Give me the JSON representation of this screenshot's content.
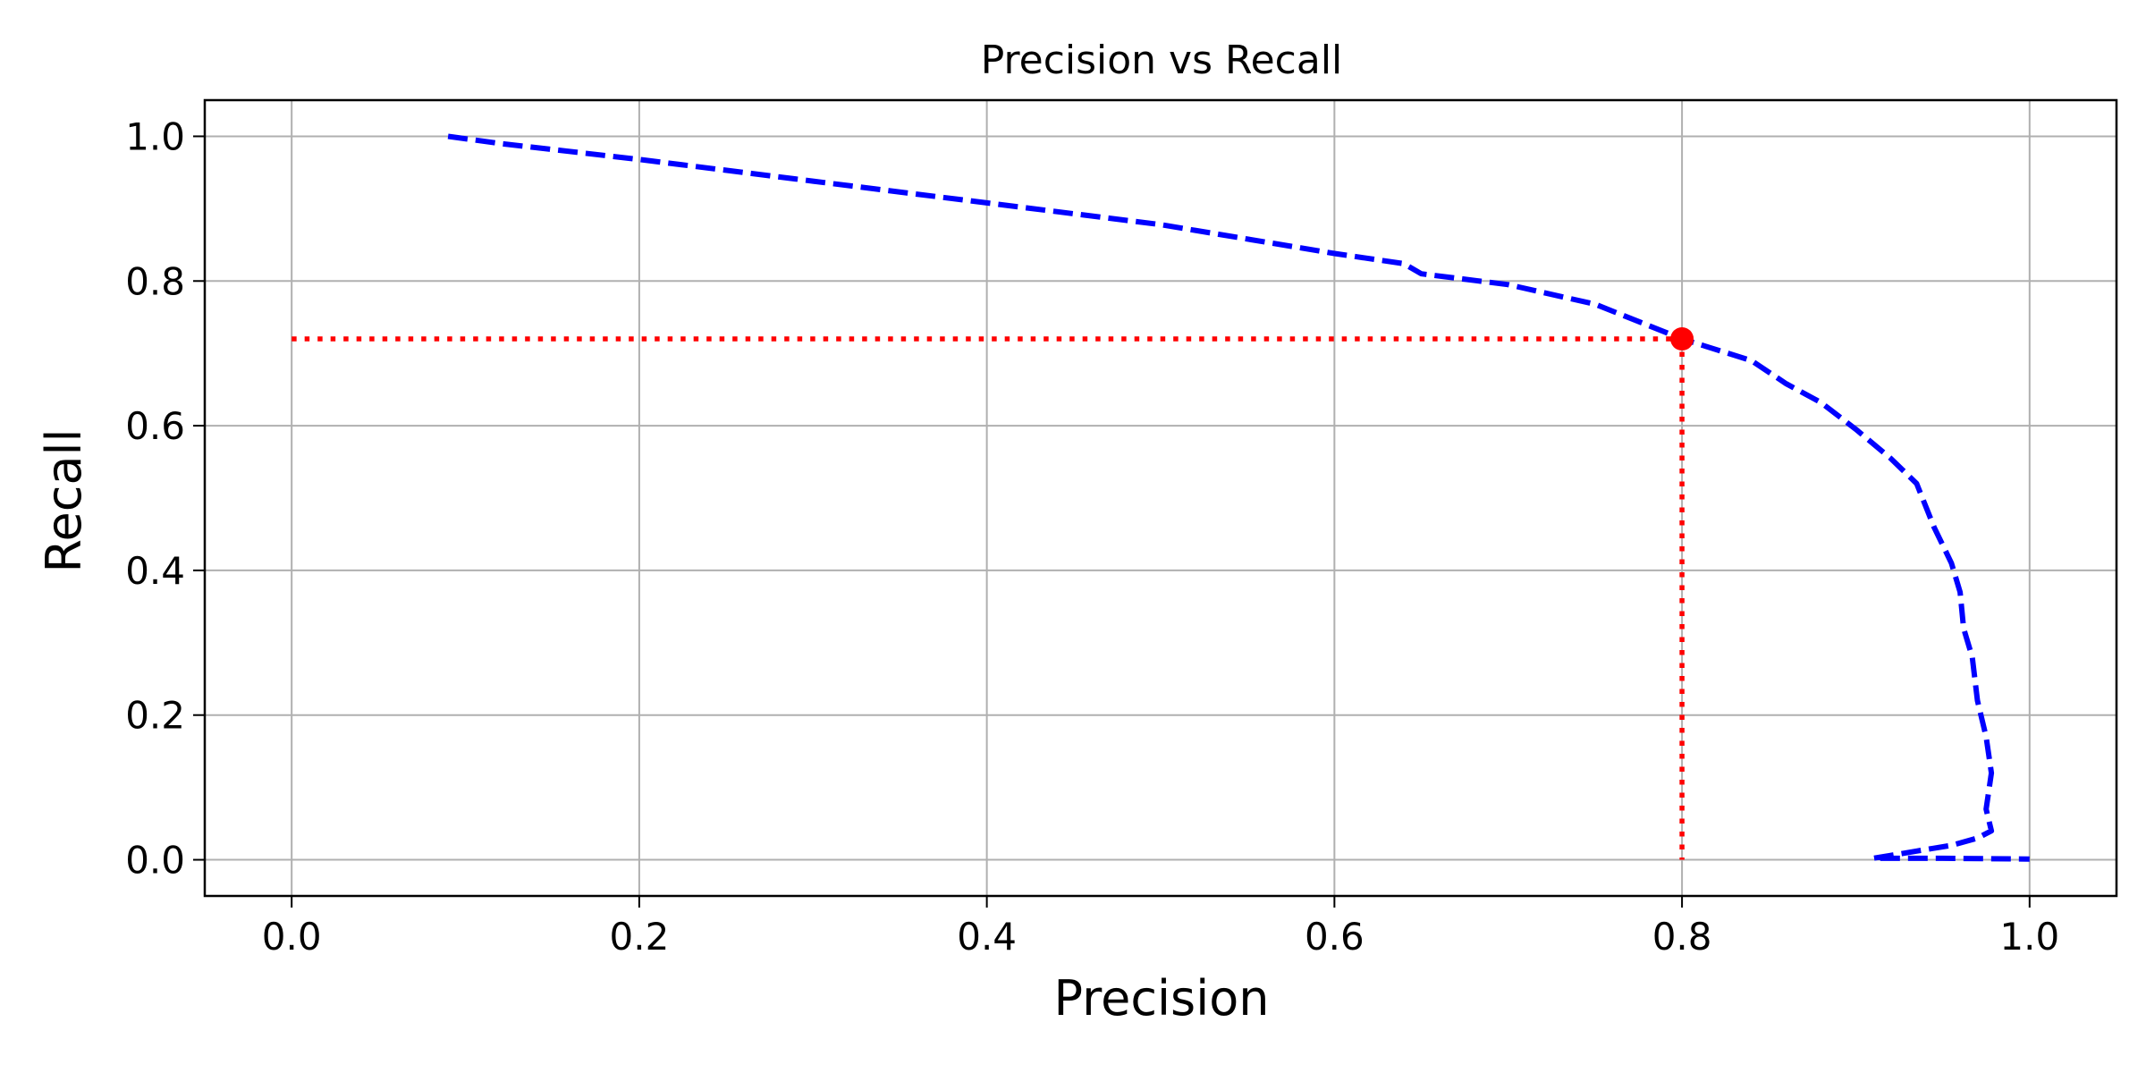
{
  "chart_data": {
    "type": "line",
    "title": "Precision vs Recall",
    "xlabel": "Precision",
    "ylabel": "Recall",
    "xlim": [
      -0.05,
      1.05
    ],
    "ylim": [
      -0.05,
      1.05
    ],
    "xticks": [
      0.0,
      0.2,
      0.4,
      0.6,
      0.8,
      1.0
    ],
    "xtick_labels": [
      "0.0",
      "0.2",
      "0.4",
      "0.6",
      "0.8",
      "1.0"
    ],
    "yticks": [
      0.0,
      0.2,
      0.4,
      0.6,
      0.8,
      1.0
    ],
    "ytick_labels": [
      "0.0",
      "0.2",
      "0.4",
      "0.6",
      "0.8",
      "1.0"
    ],
    "grid": true,
    "series": [
      {
        "color": "#0000ff",
        "line_style": "dashed",
        "points": [
          [
            0.09,
            1.0
          ],
          [
            0.12,
            0.99
          ],
          [
            0.2,
            0.968
          ],
          [
            0.3,
            0.938
          ],
          [
            0.4,
            0.908
          ],
          [
            0.5,
            0.878
          ],
          [
            0.6,
            0.838
          ],
          [
            0.64,
            0.824
          ],
          [
            0.65,
            0.81
          ],
          [
            0.7,
            0.795
          ],
          [
            0.75,
            0.768
          ],
          [
            0.8,
            0.72
          ],
          [
            0.84,
            0.69
          ],
          [
            0.86,
            0.658
          ],
          [
            0.88,
            0.632
          ],
          [
            0.9,
            0.595
          ],
          [
            0.92,
            0.555
          ],
          [
            0.935,
            0.52
          ],
          [
            0.945,
            0.46
          ],
          [
            0.955,
            0.41
          ],
          [
            0.96,
            0.37
          ],
          [
            0.962,
            0.32
          ],
          [
            0.967,
            0.28
          ],
          [
            0.97,
            0.22
          ],
          [
            0.975,
            0.17
          ],
          [
            0.978,
            0.12
          ],
          [
            0.975,
            0.07
          ],
          [
            0.978,
            0.04
          ],
          [
            0.97,
            0.03
          ],
          [
            0.955,
            0.02
          ],
          [
            0.935,
            0.012
          ],
          [
            0.92,
            0.006
          ],
          [
            0.91,
            0.002
          ],
          [
            0.95,
            0.002
          ],
          [
            1.0,
            0.001
          ]
        ]
      }
    ],
    "highlight": {
      "color": "#ff0000",
      "point": [
        0.8,
        0.72
      ]
    }
  }
}
